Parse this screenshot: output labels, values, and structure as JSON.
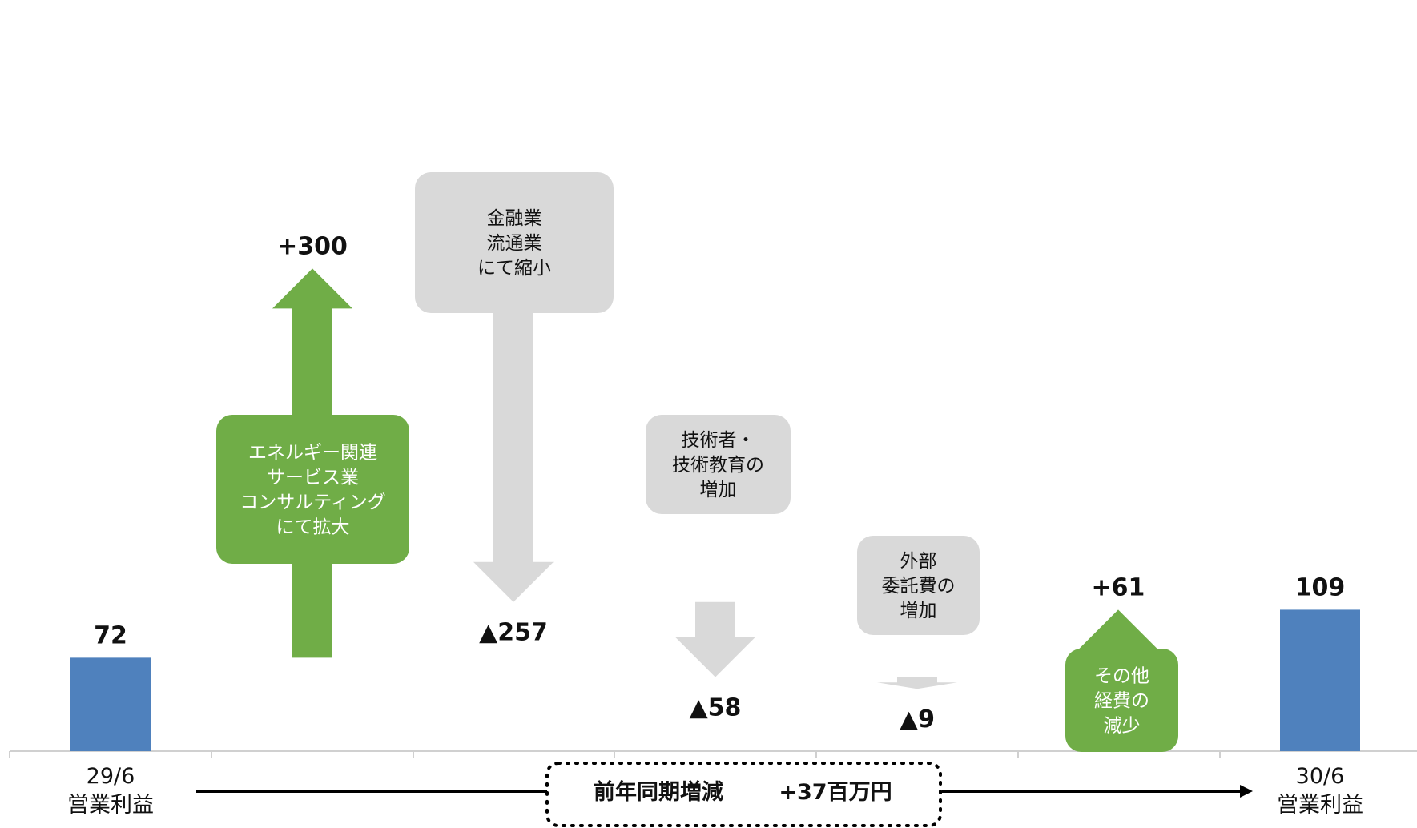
{
  "chart_data": {
    "type": "waterfall",
    "unit": "百万円",
    "ylim": [
      0,
      330
    ],
    "colors": {
      "total": "#4f81bd",
      "increase": "#70ad47",
      "decrease": "#d9d9d9",
      "increase_text": "#ffffff",
      "decrease_text": "#111111"
    },
    "steps": [
      {
        "kind": "total",
        "value": 72,
        "value_label": "72",
        "tick_label": [
          "29/6",
          "営業利益"
        ]
      },
      {
        "kind": "increase",
        "value": 300,
        "value_label": "+300",
        "note": [
          "エネルギー関連",
          "サービス業",
          "コンサルティング",
          "にて拡大"
        ]
      },
      {
        "kind": "decrease",
        "value": -257,
        "value_label": "▲257",
        "note": [
          "金融業",
          "流通業",
          "にて縮小"
        ]
      },
      {
        "kind": "decrease",
        "value": -58,
        "value_label": "▲58",
        "note": [
          "技術者・",
          "技術教育の",
          "増加"
        ]
      },
      {
        "kind": "decrease",
        "value": -9,
        "value_label": "▲9",
        "note": [
          "外部",
          "委託費の",
          "増加"
        ]
      },
      {
        "kind": "increase",
        "value": 61,
        "value_label": "+61",
        "note": [
          "その他",
          "経費の",
          "減少"
        ]
      },
      {
        "kind": "total",
        "value": 109,
        "value_label": "109",
        "tick_label": [
          "30/6",
          "営業利益"
        ]
      }
    ],
    "summary": {
      "label": "前年同期増減",
      "value": "+37百万円"
    }
  }
}
